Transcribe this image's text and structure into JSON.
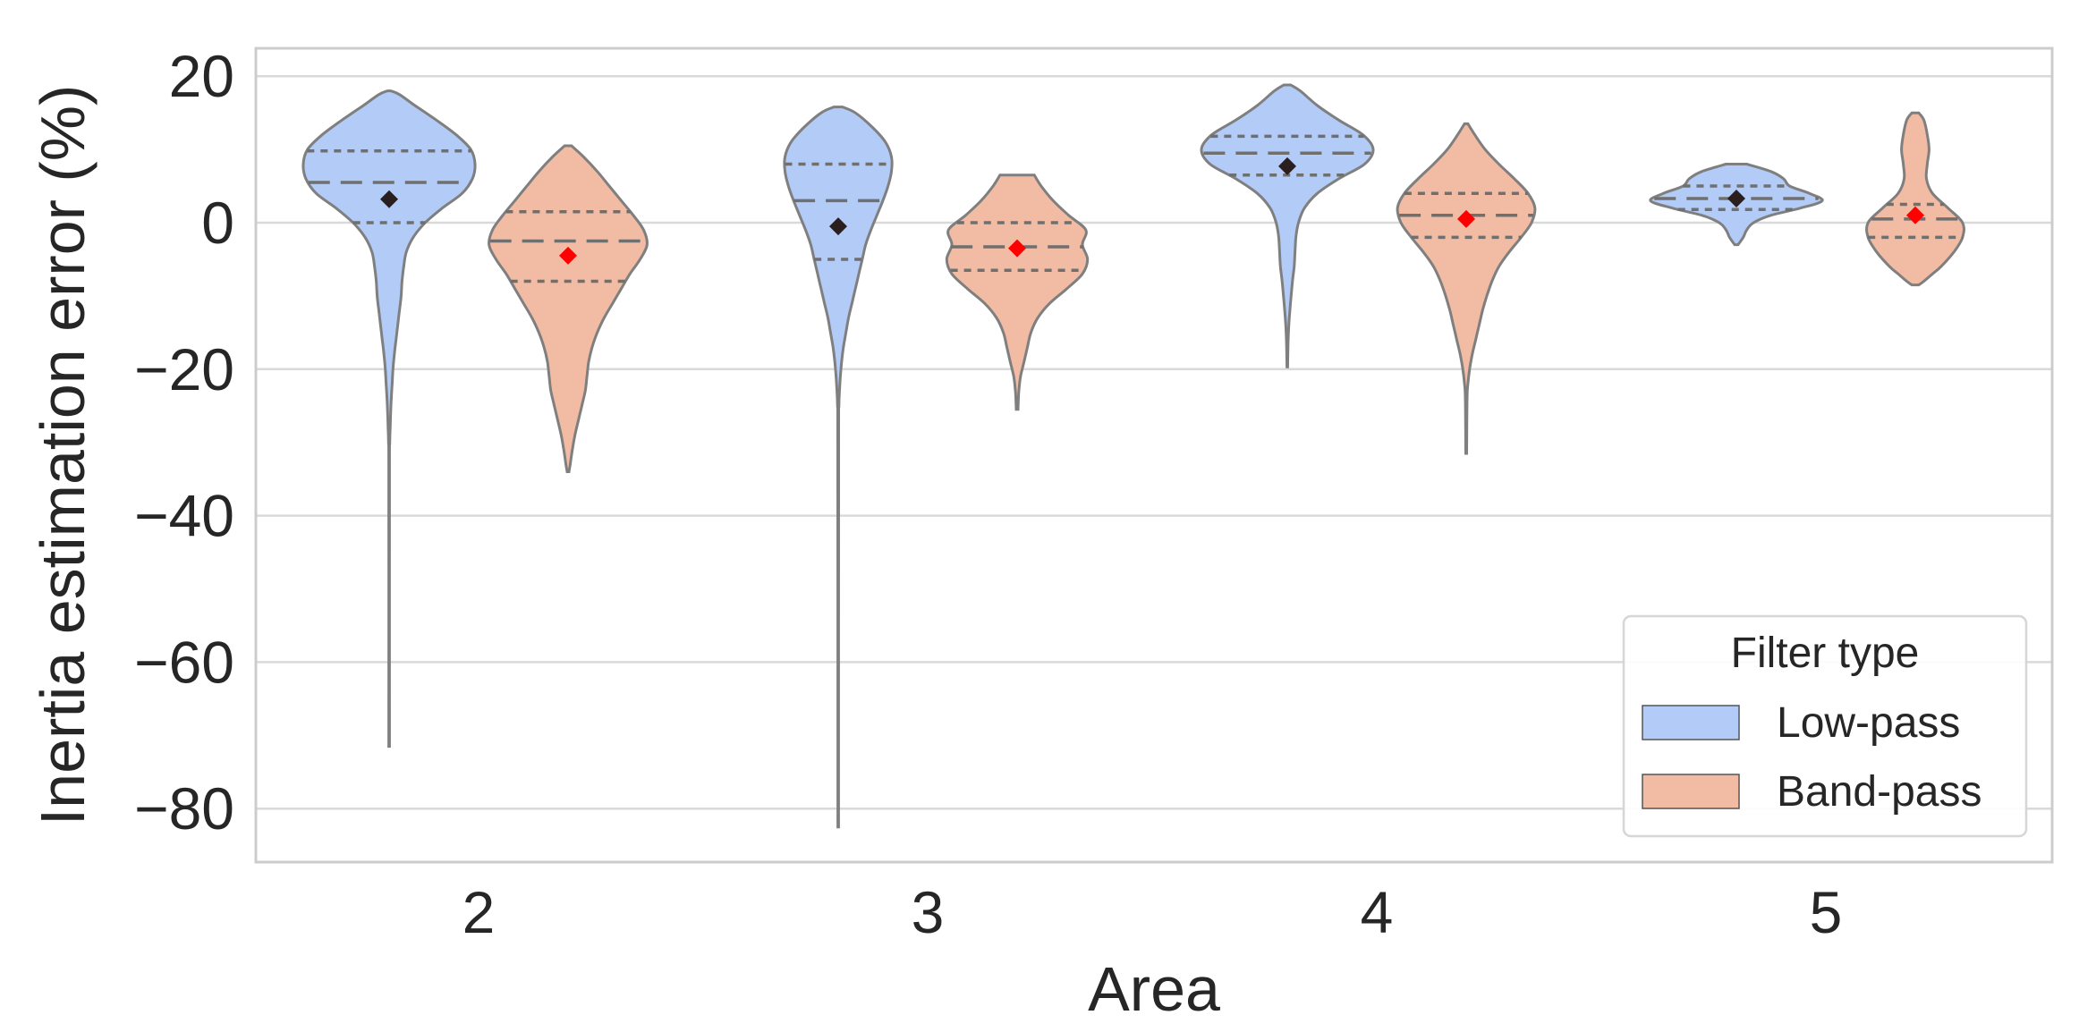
{
  "chart_data": {
    "type": "violin",
    "xlabel": "Area",
    "ylabel": "Inertia estimation error (%)",
    "categories": [
      "2",
      "3",
      "4",
      "5"
    ],
    "ylim": [
      -87,
      24
    ],
    "yticks": [
      20,
      0,
      -20,
      -40,
      -60,
      -80
    ],
    "ytick_labels": [
      "20",
      "0",
      "−20",
      "−40",
      "−60",
      "−80"
    ],
    "grid": true,
    "legend": {
      "title": "Filter type",
      "placement": "lower-right",
      "entries": [
        "Low-pass",
        "Band-pass"
      ]
    },
    "colors": {
      "low_pass": "#b2cbf7",
      "band_pass": "#f1bca3",
      "low_pass_mean": "#2a1e1e",
      "band_pass_mean": "#ff0000"
    },
    "series": [
      {
        "name": "Low-pass",
        "groups": [
          {
            "area": "2",
            "min": -71.5,
            "max": 18,
            "q1": 0,
            "median": 5.5,
            "q3": 9.8,
            "mean": 3.2,
            "profile": [
              [
                18,
                0.02
              ],
              [
                17.5,
                0.12
              ],
              [
                16,
                0.3
              ],
              [
                14,
                0.55
              ],
              [
                12,
                0.78
              ],
              [
                10,
                0.95
              ],
              [
                8,
                1.0
              ],
              [
                6,
                0.97
              ],
              [
                4,
                0.85
              ],
              [
                2,
                0.62
              ],
              [
                0,
                0.42
              ],
              [
                -2,
                0.28
              ],
              [
                -4,
                0.2
              ],
              [
                -6,
                0.17
              ],
              [
                -8,
                0.15
              ],
              [
                -10,
                0.14
              ],
              [
                -12,
                0.12
              ],
              [
                -14,
                0.1
              ],
              [
                -16,
                0.08
              ],
              [
                -18,
                0.06
              ],
              [
                -20,
                0.045
              ],
              [
                -22,
                0.035
              ],
              [
                -24,
                0.025
              ],
              [
                -26,
                0.018
              ],
              [
                -28,
                0.012
              ],
              [
                -30,
                0.007
              ],
              [
                -35,
                0.004
              ],
              [
                -71.5,
                0.004
              ]
            ]
          },
          {
            "area": "3",
            "min": -82.5,
            "max": 15.8,
            "q1": -5,
            "median": 3,
            "q3": 8,
            "mean": -0.5,
            "profile": [
              [
                15.8,
                0.05
              ],
              [
                15,
                0.2
              ],
              [
                13,
                0.4
              ],
              [
                11,
                0.55
              ],
              [
                9,
                0.62
              ],
              [
                7,
                0.62
              ],
              [
                5,
                0.58
              ],
              [
                3,
                0.52
              ],
              [
                1,
                0.45
              ],
              [
                -1,
                0.38
              ],
              [
                -3,
                0.32
              ],
              [
                -5,
                0.28
              ],
              [
                -7,
                0.24
              ],
              [
                -9,
                0.2
              ],
              [
                -11,
                0.16
              ],
              [
                -13,
                0.12
              ],
              [
                -15,
                0.09
              ],
              [
                -17,
                0.06
              ],
              [
                -19,
                0.04
              ],
              [
                -21,
                0.025
              ],
              [
                -23,
                0.015
              ],
              [
                -25,
                0.008
              ],
              [
                -30,
                0.005
              ],
              [
                -82.5,
                0.004
              ]
            ]
          },
          {
            "area": "4",
            "min": -19.7,
            "max": 18.8,
            "q1": 6.5,
            "median": 9.5,
            "q3": 11.8,
            "mean": 7.7,
            "profile": [
              [
                18.8,
                0.04
              ],
              [
                18,
                0.15
              ],
              [
                16,
                0.35
              ],
              [
                14,
                0.6
              ],
              [
                12,
                0.88
              ],
              [
                10,
                1.0
              ],
              [
                8,
                0.9
              ],
              [
                6,
                0.6
              ],
              [
                4,
                0.35
              ],
              [
                2,
                0.2
              ],
              [
                0,
                0.13
              ],
              [
                -2,
                0.1
              ],
              [
                -4,
                0.09
              ],
              [
                -6,
                0.08
              ],
              [
                -8,
                0.06
              ],
              [
                -10,
                0.045
              ],
              [
                -12,
                0.03
              ],
              [
                -14,
                0.018
              ],
              [
                -16,
                0.01
              ],
              [
                -19.7,
                0.004
              ]
            ]
          },
          {
            "area": "5",
            "min": -3,
            "max": 8,
            "q1": 1.8,
            "median": 3.3,
            "q3": 5,
            "mean": 3.3,
            "profile": [
              [
                8,
                0.12
              ],
              [
                7,
                0.4
              ],
              [
                6,
                0.55
              ],
              [
                5,
                0.62
              ],
              [
                4,
                0.85
              ],
              [
                3,
                1.0
              ],
              [
                2,
                0.75
              ],
              [
                1,
                0.4
              ],
              [
                0,
                0.2
              ],
              [
                -1,
                0.12
              ],
              [
                -2,
                0.08
              ],
              [
                -3,
                0.02
              ]
            ]
          }
        ]
      },
      {
        "name": "Band-pass",
        "groups": [
          {
            "area": "2",
            "min": -34,
            "max": 10.5,
            "q1": -8,
            "median": -2.5,
            "q3": 1.5,
            "mean": -4.5,
            "profile": [
              [
                10.5,
                0.04
              ],
              [
                9,
                0.18
              ],
              [
                7,
                0.34
              ],
              [
                5,
                0.48
              ],
              [
                3,
                0.62
              ],
              [
                1,
                0.76
              ],
              [
                -1,
                0.88
              ],
              [
                -3,
                0.92
              ],
              [
                -5,
                0.84
              ],
              [
                -7,
                0.72
              ],
              [
                -9,
                0.62
              ],
              [
                -11,
                0.52
              ],
              [
                -13,
                0.42
              ],
              [
                -15,
                0.34
              ],
              [
                -17,
                0.28
              ],
              [
                -19,
                0.24
              ],
              [
                -21,
                0.22
              ],
              [
                -23,
                0.2
              ],
              [
                -25,
                0.16
              ],
              [
                -27,
                0.12
              ],
              [
                -29,
                0.08
              ],
              [
                -31,
                0.05
              ],
              [
                -33,
                0.025
              ],
              [
                -34,
                0.01
              ]
            ]
          },
          {
            "area": "3",
            "min": -25.5,
            "max": 6.5,
            "q1": -6.5,
            "median": -3.3,
            "q3": 0,
            "mean": -3.5,
            "profile": [
              [
                6.5,
                0.2
              ],
              [
                5,
                0.28
              ],
              [
                3,
                0.42
              ],
              [
                1,
                0.6
              ],
              [
                -1,
                0.8
              ],
              [
                -3,
                0.76
              ],
              [
                -5,
                0.82
              ],
              [
                -7,
                0.76
              ],
              [
                -9,
                0.58
              ],
              [
                -11,
                0.38
              ],
              [
                -13,
                0.24
              ],
              [
                -15,
                0.16
              ],
              [
                -17,
                0.12
              ],
              [
                -19,
                0.08
              ],
              [
                -21,
                0.04
              ],
              [
                -23,
                0.02
              ],
              [
                -25.5,
                0.01
              ]
            ]
          },
          {
            "area": "4",
            "min": -31.5,
            "max": 13.5,
            "q1": -2,
            "median": 1,
            "q3": 4,
            "mean": 0.5,
            "profile": [
              [
                13.5,
                0.02
              ],
              [
                12,
                0.1
              ],
              [
                10,
                0.22
              ],
              [
                8,
                0.38
              ],
              [
                6,
                0.56
              ],
              [
                4,
                0.72
              ],
              [
                2,
                0.8
              ],
              [
                0,
                0.76
              ],
              [
                -2,
                0.64
              ],
              [
                -4,
                0.5
              ],
              [
                -6,
                0.38
              ],
              [
                -8,
                0.3
              ],
              [
                -10,
                0.24
              ],
              [
                -12,
                0.19
              ],
              [
                -14,
                0.15
              ],
              [
                -16,
                0.11
              ],
              [
                -18,
                0.07
              ],
              [
                -20,
                0.04
              ],
              [
                -22,
                0.02
              ],
              [
                -24,
                0.01
              ],
              [
                -31.5,
                0.005
              ]
            ]
          },
          {
            "area": "5",
            "min": -8.5,
            "max": 15,
            "q1": -2,
            "median": 0.5,
            "q3": 2.5,
            "mean": 1,
            "profile": [
              [
                15,
                0.04
              ],
              [
                14,
                0.1
              ],
              [
                12,
                0.14
              ],
              [
                10,
                0.16
              ],
              [
                8,
                0.14
              ],
              [
                6,
                0.13
              ],
              [
                4,
                0.2
              ],
              [
                2,
                0.38
              ],
              [
                0,
                0.55
              ],
              [
                -2,
                0.55
              ],
              [
                -4,
                0.45
              ],
              [
                -6,
                0.3
              ],
              [
                -7,
                0.2
              ],
              [
                -8,
                0.1
              ],
              [
                -8.5,
                0.04
              ]
            ]
          }
        ]
      }
    ]
  }
}
